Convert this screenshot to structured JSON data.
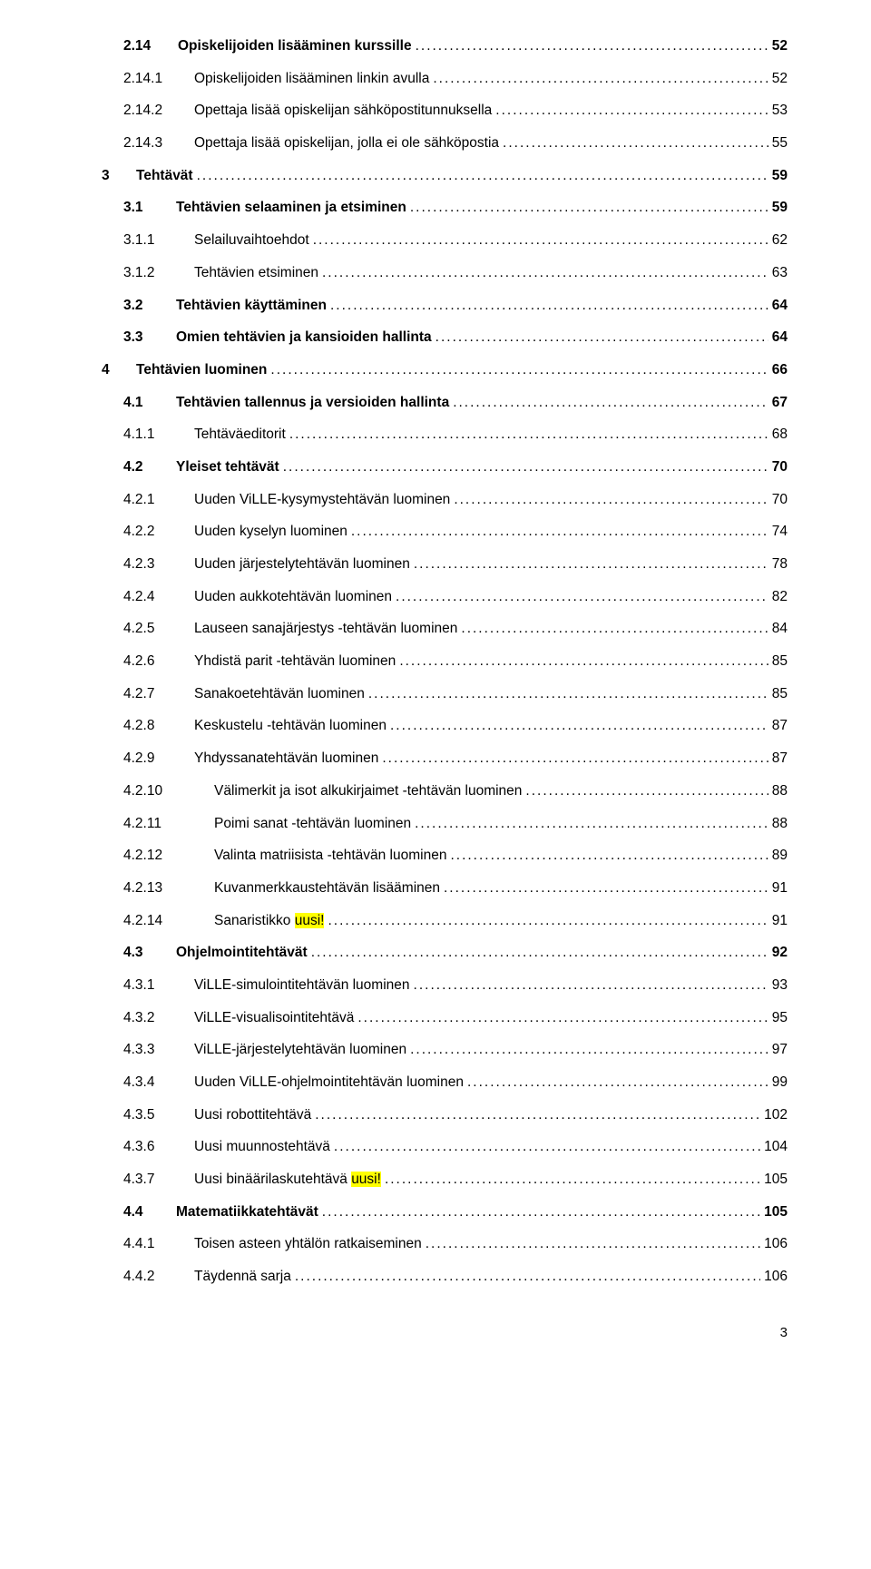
{
  "page_number": "3",
  "highlight_color": "#ffff00",
  "text_color": "#000000",
  "background_color": "#ffffff",
  "entries": [
    {
      "level": "a",
      "bold": true,
      "num": "2.14",
      "title": "Opiskelijoiden lisääminen kurssille",
      "page": "52",
      "highlight": ""
    },
    {
      "level": "d",
      "bold": false,
      "num": "2.14.1",
      "title": "Opiskelijoiden lisääminen linkin avulla",
      "page": "52",
      "highlight": ""
    },
    {
      "level": "d",
      "bold": false,
      "num": "2.14.2",
      "title": "Opettaja lisää opiskelijan sähköpostitunnuksella",
      "page": "53",
      "highlight": ""
    },
    {
      "level": "d",
      "bold": false,
      "num": "2.14.3",
      "title": "Opettaja lisää opiskelijan, jolla ei ole sähköpostia",
      "page": "55",
      "highlight": ""
    },
    {
      "level": "b",
      "bold": true,
      "num": "3",
      "title": "Tehtävät",
      "page": "59",
      "highlight": ""
    },
    {
      "level": "c",
      "bold": true,
      "num": "3.1",
      "title": "Tehtävien selaaminen ja etsiminen",
      "page": "59",
      "highlight": ""
    },
    {
      "level": "d",
      "bold": false,
      "num": "3.1.1",
      "title": "Selailuvaihtoehdot",
      "page": "62",
      "highlight": ""
    },
    {
      "level": "d",
      "bold": false,
      "num": "3.1.2",
      "title": "Tehtävien etsiminen",
      "page": "63",
      "highlight": ""
    },
    {
      "level": "c",
      "bold": true,
      "num": "3.2",
      "title": "Tehtävien käyttäminen",
      "page": "64",
      "highlight": ""
    },
    {
      "level": "c",
      "bold": true,
      "num": "3.3",
      "title": "Omien tehtävien ja kansioiden hallinta",
      "page": "64",
      "highlight": ""
    },
    {
      "level": "b",
      "bold": true,
      "num": "4",
      "title": "Tehtävien luominen",
      "page": "66",
      "highlight": ""
    },
    {
      "level": "c",
      "bold": true,
      "num": "4.1",
      "title": "Tehtävien tallennus ja versioiden hallinta",
      "page": "67",
      "highlight": ""
    },
    {
      "level": "d",
      "bold": false,
      "num": "4.1.1",
      "title": "Tehtäväeditorit",
      "page": "68",
      "highlight": ""
    },
    {
      "level": "c",
      "bold": true,
      "num": "4.2",
      "title": "Yleiset tehtävät",
      "page": "70",
      "highlight": ""
    },
    {
      "level": "d",
      "bold": false,
      "num": "4.2.1",
      "title": "Uuden ViLLE-kysymystehtävän luominen",
      "page": "70",
      "highlight": ""
    },
    {
      "level": "d",
      "bold": false,
      "num": "4.2.2",
      "title": "Uuden kyselyn luominen",
      "page": "74",
      "highlight": ""
    },
    {
      "level": "d",
      "bold": false,
      "num": "4.2.3",
      "title": "Uuden järjestelytehtävän luominen",
      "page": "78",
      "highlight": ""
    },
    {
      "level": "d",
      "bold": false,
      "num": "4.2.4",
      "title": "Uuden aukkotehtävän luominen",
      "page": "82",
      "highlight": ""
    },
    {
      "level": "d",
      "bold": false,
      "num": "4.2.5",
      "title": "Lauseen sanajärjestys -tehtävän luominen",
      "page": "84",
      "highlight": ""
    },
    {
      "level": "d",
      "bold": false,
      "num": "4.2.6",
      "title": "Yhdistä parit -tehtävän luominen",
      "page": "85",
      "highlight": ""
    },
    {
      "level": "d",
      "bold": false,
      "num": "4.2.7",
      "title": "Sanakoetehtävän luominen",
      "page": "85",
      "highlight": ""
    },
    {
      "level": "d",
      "bold": false,
      "num": "4.2.8",
      "title": "Keskustelu -tehtävän luominen",
      "page": "87",
      "highlight": ""
    },
    {
      "level": "d",
      "bold": false,
      "num": "4.2.9",
      "title": "Yhdyssanatehtävän luominen",
      "page": "87",
      "highlight": ""
    },
    {
      "level": "e",
      "bold": false,
      "num": "4.2.10",
      "title": "Välimerkit ja isot alkukirjaimet -tehtävän luominen",
      "page": "88",
      "highlight": ""
    },
    {
      "level": "e",
      "bold": false,
      "num": "4.2.11",
      "title": "Poimi sanat -tehtävän luominen",
      "page": "88",
      "highlight": ""
    },
    {
      "level": "e",
      "bold": false,
      "num": "4.2.12",
      "title": "Valinta matriisista -tehtävän luominen",
      "page": "89",
      "highlight": ""
    },
    {
      "level": "e",
      "bold": false,
      "num": "4.2.13",
      "title": "Kuvanmerkkaustehtävän lisääminen",
      "page": "91",
      "highlight": ""
    },
    {
      "level": "e",
      "bold": false,
      "num": "4.2.14",
      "title": "Sanaristikko ",
      "page": "91",
      "highlight": "uusi!"
    },
    {
      "level": "c",
      "bold": true,
      "num": "4.3",
      "title": "Ohjelmointitehtävät",
      "page": "92",
      "highlight": ""
    },
    {
      "level": "d",
      "bold": false,
      "num": "4.3.1",
      "title": "ViLLE-simulointitehtävän luominen",
      "page": "93",
      "highlight": ""
    },
    {
      "level": "d",
      "bold": false,
      "num": "4.3.2",
      "title": "ViLLE-visualisointitehtävä",
      "page": "95",
      "highlight": ""
    },
    {
      "level": "d",
      "bold": false,
      "num": "4.3.3",
      "title": "ViLLE-järjestelytehtävän luominen",
      "page": "97",
      "highlight": ""
    },
    {
      "level": "d",
      "bold": false,
      "num": "4.3.4",
      "title": "Uuden ViLLE-ohjelmointitehtävän luominen",
      "page": "99",
      "highlight": ""
    },
    {
      "level": "d",
      "bold": false,
      "num": "4.3.5",
      "title": "Uusi robottitehtävä",
      "page": "102",
      "highlight": ""
    },
    {
      "level": "d",
      "bold": false,
      "num": "4.3.6",
      "title": "Uusi muunnostehtävä",
      "page": "104",
      "highlight": ""
    },
    {
      "level": "d",
      "bold": false,
      "num": "4.3.7",
      "title": "Uusi binäärilaskutehtävä ",
      "page": "105",
      "highlight": "uusi!"
    },
    {
      "level": "c",
      "bold": true,
      "num": "4.4",
      "title": "Matematiikkatehtävät",
      "page": "105",
      "highlight": ""
    },
    {
      "level": "d",
      "bold": false,
      "num": "4.4.1",
      "title": "Toisen asteen yhtälön ratkaiseminen",
      "page": "106",
      "highlight": ""
    },
    {
      "level": "d",
      "bold": false,
      "num": "4.4.2",
      "title": "Täydennä sarja",
      "page": "106",
      "highlight": ""
    }
  ]
}
